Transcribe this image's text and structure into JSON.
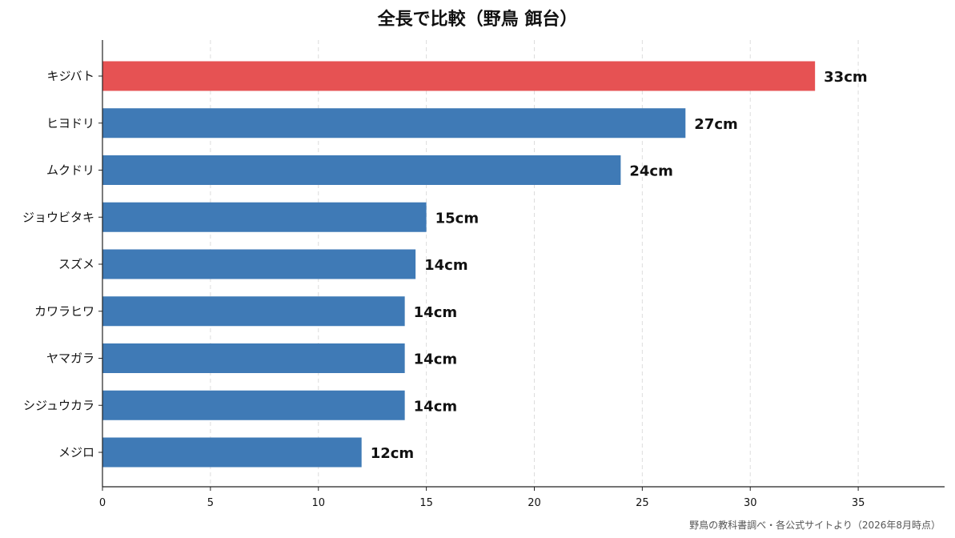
{
  "chart_data": {
    "type": "bar",
    "orientation": "horizontal",
    "title": "全長で比較（野鳥 餌台）",
    "categories": [
      "キジバト",
      "ヒヨドリ",
      "ムクドリ",
      "ジョウビタキ",
      "スズメ",
      "カワラヒワ",
      "ヤマガラ",
      "シジュウカラ",
      "メジロ"
    ],
    "values": [
      33,
      27,
      24,
      15,
      14.5,
      14,
      14,
      14,
      12
    ],
    "value_labels": [
      "33cm",
      "27cm",
      "24cm",
      "15cm",
      "14cm",
      "14cm",
      "14cm",
      "14cm",
      "12cm"
    ],
    "highlight_index": 0,
    "colors": {
      "default": "#3f7ab6",
      "highlight": "#e65253"
    },
    "xlim": [
      0,
      39
    ],
    "xticks": [
      0,
      5,
      10,
      15,
      20,
      25,
      30,
      35
    ],
    "grid": "x-dashed",
    "source": "野鳥の教科書調べ・各公式サイトより（2026年8月時点）"
  }
}
